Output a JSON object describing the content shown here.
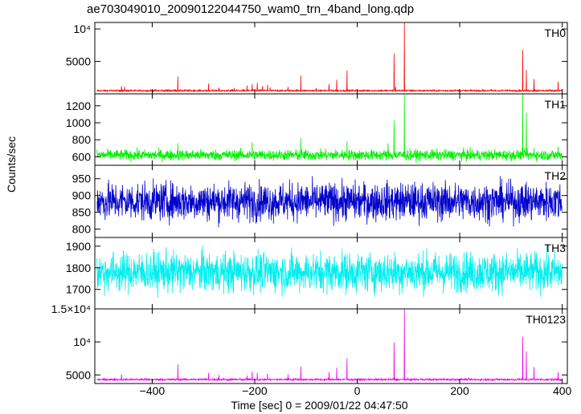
{
  "chart_data": {
    "type": "line",
    "title": "ae703049010_20090122044750_wam0_trn_4band_long.qdp",
    "xlabel": "Time [sec] 0 = 2009/01/22 04:47:50",
    "ylabel": "Counts/sec",
    "xlim": [
      -512,
      410
    ],
    "x_ticks": [
      -400,
      -200,
      0,
      200,
      400
    ],
    "x_tick_labels": [
      "−400",
      "−200",
      "0",
      "200",
      "400"
    ],
    "shared_x": true,
    "panels": [
      {
        "name": "TH0",
        "color": "#ff0000",
        "ylim": [
          0,
          11000
        ],
        "y_ticks": [
          5000,
          10000
        ],
        "y_tick_labels": [
          "5000",
          "10⁴"
        ],
        "baseline": 500,
        "noise": 90,
        "peaks": [
          [
            -460,
            1200
          ],
          [
            -454,
            1100
          ],
          [
            -350,
            2700
          ],
          [
            -290,
            1600
          ],
          [
            -270,
            1000
          ],
          [
            -240,
            900
          ],
          [
            -215,
            1300
          ],
          [
            -205,
            1500
          ],
          [
            -195,
            1700
          ],
          [
            -185,
            1200
          ],
          [
            -175,
            1400
          ],
          [
            -170,
            1000
          ],
          [
            -135,
            1100
          ],
          [
            -110,
            2800
          ],
          [
            -80,
            900
          ],
          [
            -55,
            1500
          ],
          [
            -40,
            2200
          ],
          [
            -20,
            3600
          ],
          [
            72,
            6200
          ],
          [
            75,
            1100
          ],
          [
            92,
            11000
          ],
          [
            323,
            6800
          ],
          [
            330,
            3700
          ],
          [
            345,
            2300
          ],
          [
            392,
            1900
          ]
        ]
      },
      {
        "name": "TH1",
        "color": "#00ee00",
        "ylim": [
          500,
          1340
        ],
        "y_ticks": [
          600,
          800,
          1000,
          1200
        ],
        "y_tick_labels": [
          "600",
          "800",
          "1000",
          "1200"
        ],
        "baseline": 620,
        "noise": 45,
        "peaks": [
          [
            -350,
            760
          ],
          [
            -205,
            770
          ],
          [
            -110,
            820
          ],
          [
            -20,
            780
          ],
          [
            60,
            760
          ],
          [
            72,
            1030
          ],
          [
            92,
            1340
          ],
          [
            323,
            1340
          ],
          [
            330,
            1120
          ],
          [
            345,
            700
          ],
          [
            392,
            720
          ]
        ]
      },
      {
        "name": "TH2",
        "color": "#0000cc",
        "ylim": [
          775,
          990
        ],
        "y_ticks": [
          800,
          850,
          900,
          950
        ],
        "y_tick_labels": [
          "800",
          "850",
          "900",
          "950"
        ],
        "baseline": 882,
        "noise": 40,
        "peaks": []
      },
      {
        "name": "TH3",
        "color": "#00eeee",
        "ylim": [
          1610,
          1940
        ],
        "y_ticks": [
          1700,
          1800,
          1900
        ],
        "y_tick_labels": [
          "1700",
          "1800",
          "1900"
        ],
        "baseline": 1780,
        "noise": 65,
        "peaks": []
      },
      {
        "name": "TH0123",
        "color": "#ee00ee",
        "ylim": [
          3700,
          15000
        ],
        "y_ticks": [
          5000,
          10000,
          15000
        ],
        "y_tick_labels": [
          "5000",
          "10⁴",
          "1.5×10⁴"
        ],
        "baseline": 4300,
        "noise": 110,
        "peaks": [
          [
            -460,
            5100
          ],
          [
            -350,
            6600
          ],
          [
            -290,
            5300
          ],
          [
            -270,
            5000
          ],
          [
            -215,
            4900
          ],
          [
            -205,
            5500
          ],
          [
            -195,
            5300
          ],
          [
            -175,
            5200
          ],
          [
            -135,
            5100
          ],
          [
            -110,
            6300
          ],
          [
            -55,
            5400
          ],
          [
            -40,
            6100
          ],
          [
            -20,
            7500
          ],
          [
            72,
            9900
          ],
          [
            92,
            15000
          ],
          [
            323,
            10800
          ],
          [
            330,
            8600
          ],
          [
            345,
            6200
          ],
          [
            392,
            5400
          ]
        ]
      }
    ]
  }
}
